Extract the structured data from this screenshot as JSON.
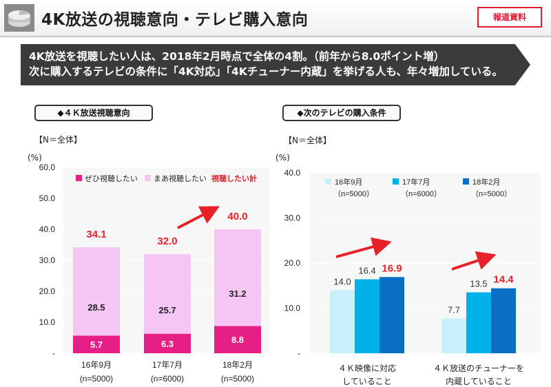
{
  "header": {
    "title": "4K放送の視聴意向・テレビ購入意向",
    "badge": "報道資料"
  },
  "summary": {
    "line1": "4K放送を視聴したい人は、2018年2月時点で全体の4割。（前年から8.0ポイント増）",
    "line2": "次に購入するテレビの条件に「4K対応」「4Kチューナー内蔵」を挙げる人も、年々増加している。"
  },
  "colors": {
    "strong_pink": "#e61f86",
    "light_pink": "#f5c6f3",
    "red": "#e8202a",
    "c1": "#c8f0fb",
    "c2": "#00b0e8",
    "c3": "#0a6ec4"
  },
  "chart_data": [
    {
      "type": "bar",
      "title": "◆４Ｋ放送視聴意向",
      "subtitle": "【N＝全体】",
      "unit": "(%)",
      "categories": [
        "16年9月",
        "17年7月",
        "18年2月"
      ],
      "category_notes": [
        "(n=5000)",
        "(n=6000)",
        "(n=5000)"
      ],
      "ylim": [
        0,
        60
      ],
      "yticks": [
        "-",
        "10.0",
        "20.0",
        "30.0",
        "40.0",
        "50.0",
        "60.0"
      ],
      "stacked": true,
      "series": [
        {
          "name": "ぜひ視聴したい",
          "values": [
            5.7,
            6.3,
            8.8
          ]
        },
        {
          "name": "まあ視聴したい",
          "values": [
            28.5,
            25.7,
            31.2
          ]
        }
      ],
      "totals_label": "視聴したい計",
      "totals_text": [
        "34.1",
        "32.0",
        "40.0"
      ],
      "legend": "top"
    },
    {
      "type": "bar",
      "title": "◆次のテレビの購入条件",
      "subtitle": "【N＝全体】",
      "unit": "(%)",
      "categories": [
        [
          "４Ｋ映像に対応",
          "していること"
        ],
        [
          "４Ｋ放送のチューナーを",
          "内蔵していること"
        ]
      ],
      "ylim": [
        0,
        40
      ],
      "yticks": [
        "-",
        "10.0",
        "20.0",
        "30.0",
        "40.0"
      ],
      "series": [
        {
          "name": "16年9月",
          "note": "（n=5000）",
          "values": [
            14.0,
            7.7
          ]
        },
        {
          "name": "17年7月",
          "note": "（n=6000）",
          "values": [
            16.4,
            13.5
          ]
        },
        {
          "name": "18年2月",
          "note": "（n=5000）",
          "values": [
            16.9,
            14.4
          ]
        }
      ],
      "legend": "top"
    }
  ]
}
